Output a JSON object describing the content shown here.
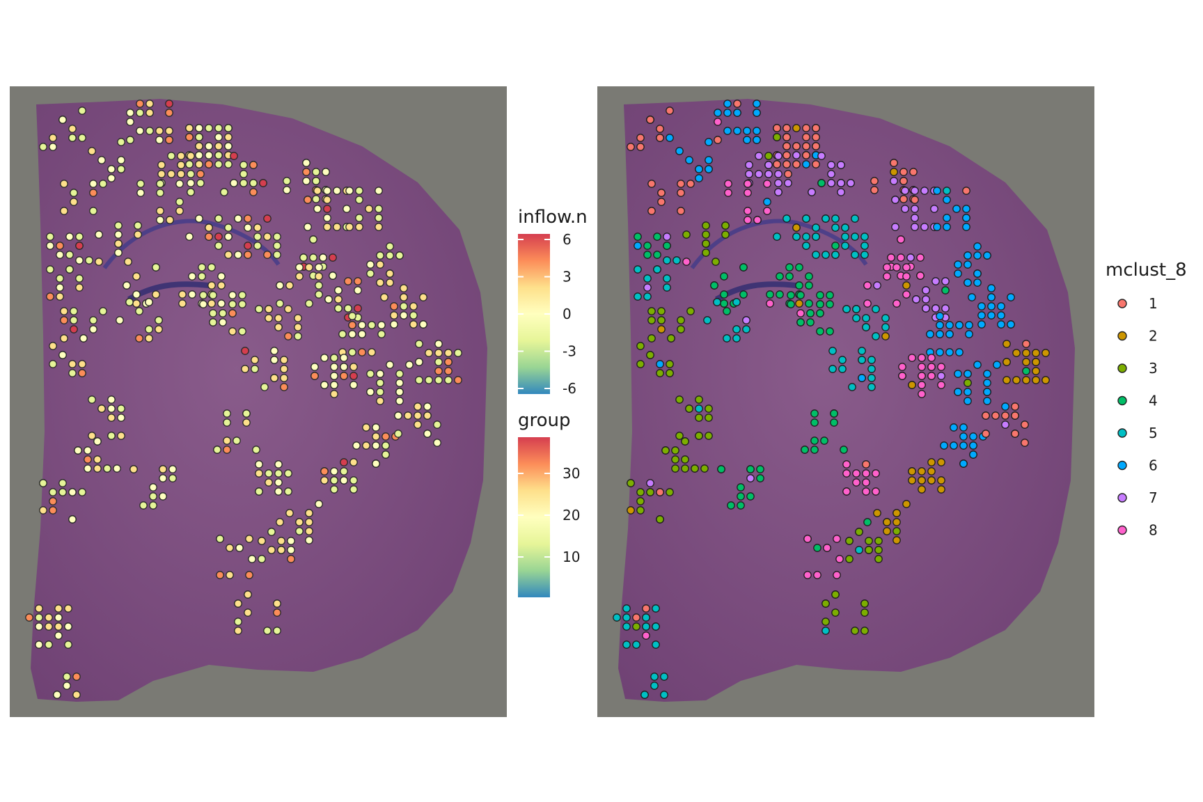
{
  "chart_data": [
    {
      "type": "scatter",
      "description_panel": "left",
      "color_scales": [
        {
          "title": "inflow.n",
          "ticks": [
            "6",
            "3",
            "0",
            "-3",
            "-6"
          ],
          "tick_values": [
            6,
            3,
            0,
            -3,
            -6
          ],
          "range": [
            -6,
            6
          ],
          "palette": [
            "#3288bd",
            "#99d594",
            "#e6f598",
            "#ffffbf",
            "#fee08b",
            "#fc8d59",
            "#d53e4f"
          ]
        },
        {
          "title": "group",
          "ticks": [
            "30",
            "20",
            "10"
          ],
          "tick_values": [
            30,
            20,
            10
          ],
          "range": [
            1,
            38
          ],
          "palette": [
            "#3288bd",
            "#99d594",
            "#e6f598",
            "#ffffbf",
            "#fee08b",
            "#fc8d59",
            "#d53e4f"
          ]
        }
      ]
    },
    {
      "type": "scatter",
      "description_panel": "right",
      "legend": {
        "title": "mclust_8",
        "placement": "right",
        "items": [
          {
            "label": "1",
            "color": "#f8766d"
          },
          {
            "label": "2",
            "color": "#cd9600"
          },
          {
            "label": "3",
            "color": "#7cae00"
          },
          {
            "label": "4",
            "color": "#00be67"
          },
          {
            "label": "5",
            "color": "#00bfc4"
          },
          {
            "label": "6",
            "color": "#00a9ff"
          },
          {
            "label": "7",
            "color": "#c77cff"
          },
          {
            "label": "8",
            "color": "#ff61cc"
          }
        ]
      }
    }
  ],
  "colors": {
    "tissue_background": "#7a7a74",
    "tissue": "#7a4a7e",
    "spot_outline": "#222222"
  }
}
